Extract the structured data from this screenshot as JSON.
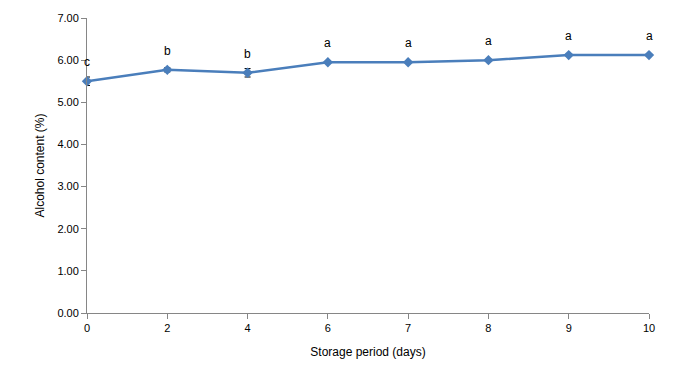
{
  "chart_data": {
    "type": "line",
    "x_label": "Storage period (days)",
    "y_label": "Alcohol content (%)",
    "categories": [
      "0",
      "2",
      "4",
      "6",
      "7",
      "8",
      "9",
      "10"
    ],
    "values": [
      5.5,
      5.77,
      5.7,
      5.95,
      5.95,
      6.0,
      6.12,
      6.12
    ],
    "errors": [
      0.1,
      0.05,
      0.1,
      0.03,
      0.02,
      0.02,
      0.02,
      0.02
    ],
    "annotations": [
      "c",
      "b",
      "b",
      "a",
      "a",
      "a",
      "a",
      "a"
    ],
    "color": "#4a7ebb",
    "marker": "diamond",
    "ylim": [
      0,
      7
    ],
    "yticks": [
      {
        "value": 0,
        "label": "0.00"
      },
      {
        "value": 1,
        "label": "1.00"
      },
      {
        "value": 2,
        "label": "2.00"
      },
      {
        "value": 3,
        "label": "3.00"
      },
      {
        "value": 4,
        "label": "4.00"
      },
      {
        "value": 5,
        "label": "5.00"
      },
      {
        "value": 6,
        "label": "6.00"
      },
      {
        "value": 7,
        "label": "7.00"
      }
    ],
    "grid": false
  }
}
